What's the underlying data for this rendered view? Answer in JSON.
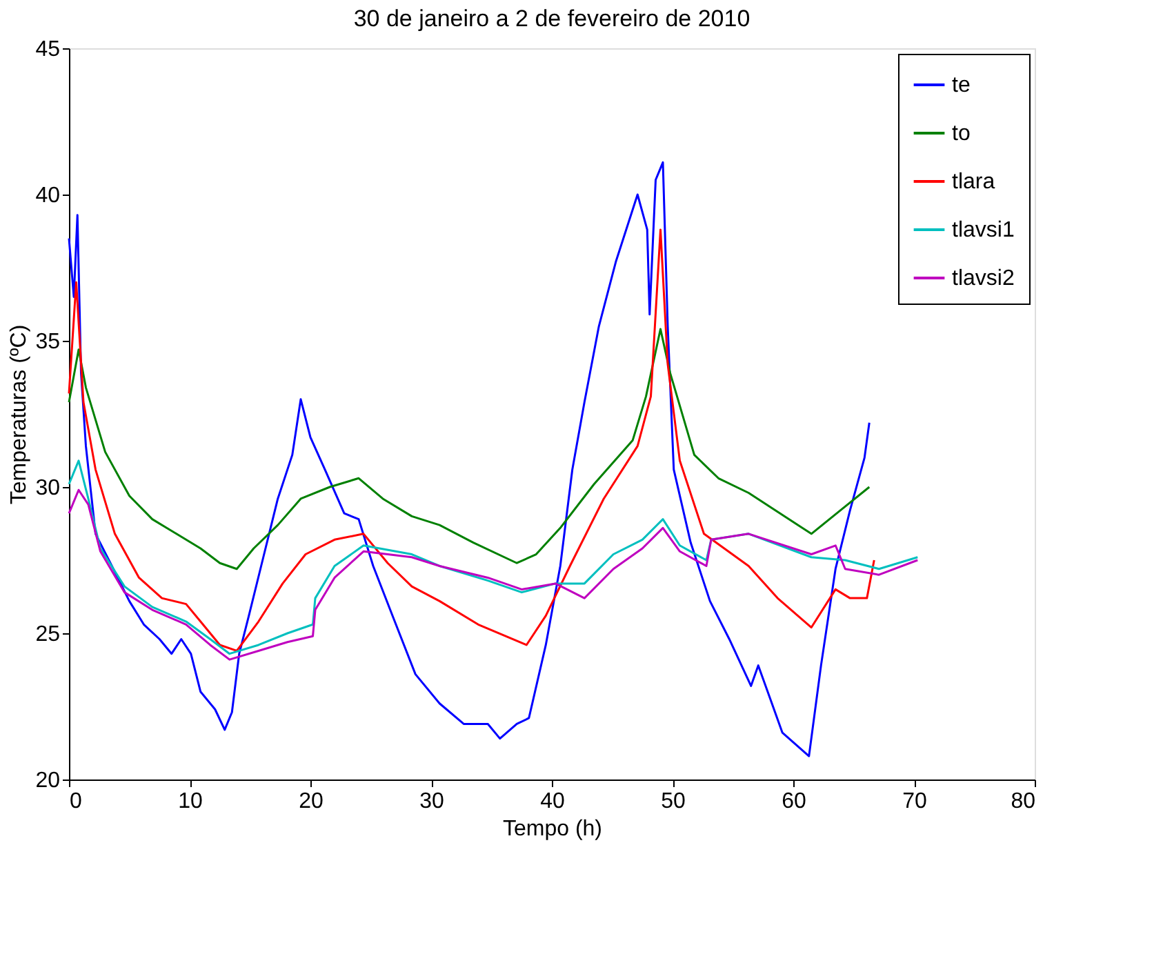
{
  "chart_data": {
    "type": "line",
    "title": "30 de janeiro a 2 de fevereiro de 2010",
    "xlabel": "Tempo (h)",
    "ylabel": "Temperaturas (ºC)",
    "xlim": [
      0,
      80
    ],
    "xticks": [
      0,
      10,
      20,
      30,
      40,
      50,
      60,
      70,
      80
    ],
    "ylim": [
      20,
      45
    ],
    "yticks": [
      20,
      25,
      30,
      35,
      40,
      45
    ],
    "grid": false,
    "legend": "top right",
    "series": [
      {
        "name": "te",
        "color": "#0000ff",
        "x": [
          0,
          0.4,
          0.7,
          1,
          1.4,
          2.2,
          3.8,
          5,
          6.2,
          7.5,
          8.5,
          9.3,
          10.1,
          10.9,
          12.1,
          12.9,
          13.5,
          14.1,
          14.9,
          16.1,
          17.3,
          18.5,
          19.2,
          20,
          21.2,
          22.8,
          24,
          25.2,
          26.8,
          28.7,
          30.7,
          32.7,
          34.7,
          35.7,
          37.1,
          38.1,
          39.5,
          40.7,
          41.7,
          42.7,
          43.9,
          45.3,
          47.1,
          47.9,
          48.1,
          48.6,
          49.2,
          49.6,
          50.1,
          51.5,
          53.1,
          54.7,
          56.5,
          57.1,
          59.1,
          61.3,
          62.3,
          63.5,
          64.7,
          65.9,
          66.3
        ],
        "values": [
          38.5,
          36.5,
          39.3,
          33.9,
          31.4,
          28.4,
          27.1,
          26.1,
          25.3,
          24.8,
          24.3,
          24.8,
          24.3,
          23,
          22.4,
          21.7,
          22.3,
          24.3,
          25.6,
          27.6,
          29.6,
          31.1,
          33,
          31.7,
          30.6,
          29.1,
          28.9,
          27.3,
          25.6,
          23.6,
          22.6,
          21.9,
          21.9,
          21.4,
          21.9,
          22.1,
          24.6,
          27.3,
          30.6,
          32.9,
          35.5,
          37.7,
          40,
          38.8,
          35.9,
          40.5,
          41.1,
          35.5,
          30.6,
          28.1,
          26.1,
          24.8,
          23.2,
          23.9,
          21.6,
          20.8,
          23.9,
          27.2,
          29.2,
          31,
          32.2
        ]
      },
      {
        "name": "to",
        "color": "#008000",
        "x": [
          0,
          0.8,
          1.4,
          3,
          5,
          6.9,
          8.9,
          10.9,
          12.5,
          13.9,
          15.3,
          17.3,
          19.2,
          21.6,
          24,
          26,
          28.4,
          30.7,
          33.5,
          37.1,
          38.7,
          40.7,
          43.5,
          46.7,
          47.8,
          49,
          49.8,
          51.8,
          53.8,
          56.3,
          61.5,
          63.9,
          66.3
        ],
        "values": [
          32.9,
          34.7,
          33.4,
          31.2,
          29.7,
          28.9,
          28.4,
          27.9,
          27.4,
          27.2,
          27.9,
          28.7,
          29.6,
          30,
          30.3,
          29.6,
          29,
          28.7,
          28.1,
          27.4,
          27.7,
          28.6,
          30.1,
          31.6,
          33.1,
          35.4,
          33.9,
          31.1,
          30.3,
          29.8,
          28.4,
          29.2,
          30
        ]
      },
      {
        "name": "tlara",
        "color": "#ff0000",
        "x": [
          0,
          0.6,
          1.2,
          2.2,
          3.8,
          5.8,
          7.7,
          9.7,
          10.9,
          12.5,
          13.9,
          15.7,
          17.7,
          19.6,
          22,
          24.4,
          26.4,
          28.4,
          30.7,
          33.9,
          37.9,
          39.5,
          41.5,
          44.3,
          47.1,
          48.2,
          49,
          49.6,
          50.6,
          52.6,
          56.3,
          58.7,
          61.5,
          63.5,
          64.7,
          66.1,
          66.7
        ],
        "values": [
          33.2,
          37,
          32.9,
          30.6,
          28.4,
          26.9,
          26.2,
          26,
          25.4,
          24.6,
          24.4,
          25.4,
          26.7,
          27.7,
          28.2,
          28.4,
          27.4,
          26.6,
          26.1,
          25.3,
          24.6,
          25.6,
          27.3,
          29.6,
          31.4,
          33.1,
          38.8,
          34.2,
          30.9,
          28.4,
          27.3,
          26.2,
          25.2,
          26.5,
          26.2,
          26.2,
          27.5
        ]
      },
      {
        "name": "tlavsi1",
        "color": "#00bfbf",
        "x": [
          0,
          0.8,
          1.6,
          2.6,
          4.6,
          6.9,
          9.7,
          11.7,
          13.3,
          15.7,
          18.1,
          20.2,
          20.4,
          22,
          24.4,
          28.4,
          30.7,
          34.7,
          37.5,
          40.3,
          42.7,
          45.1,
          47.5,
          49.2,
          50.6,
          52.8,
          53.2,
          56.3,
          61.5,
          64.3,
          67.1,
          70.3
        ],
        "values": [
          30.1,
          30.9,
          29.6,
          27.9,
          26.6,
          25.9,
          25.4,
          24.8,
          24.3,
          24.6,
          25,
          25.3,
          26.2,
          27.3,
          28,
          27.7,
          27.3,
          26.8,
          26.4,
          26.7,
          26.7,
          27.7,
          28.2,
          28.9,
          28,
          27.5,
          28.2,
          28.4,
          27.6,
          27.5,
          27.2,
          27.6
        ]
      },
      {
        "name": "tlavsi2",
        "color": "#bf00bf",
        "x": [
          0,
          0.8,
          1.6,
          2.6,
          4.6,
          6.9,
          9.7,
          11.7,
          13.3,
          15.7,
          18.1,
          20.2,
          20.4,
          22,
          24.4,
          28.4,
          30.7,
          34.7,
          37.5,
          40.3,
          42.7,
          45.1,
          47.5,
          49.2,
          50.6,
          52.8,
          53.2,
          56.3,
          61.5,
          63.5,
          64.3,
          67.1,
          70.3
        ],
        "values": [
          29.1,
          29.9,
          29.4,
          27.8,
          26.4,
          25.8,
          25.3,
          24.6,
          24.1,
          24.4,
          24.7,
          24.9,
          25.8,
          26.9,
          27.8,
          27.6,
          27.3,
          26.9,
          26.5,
          26.7,
          26.2,
          27.2,
          27.9,
          28.6,
          27.8,
          27.3,
          28.2,
          28.4,
          27.7,
          28,
          27.2,
          27,
          27.5
        ]
      }
    ]
  }
}
